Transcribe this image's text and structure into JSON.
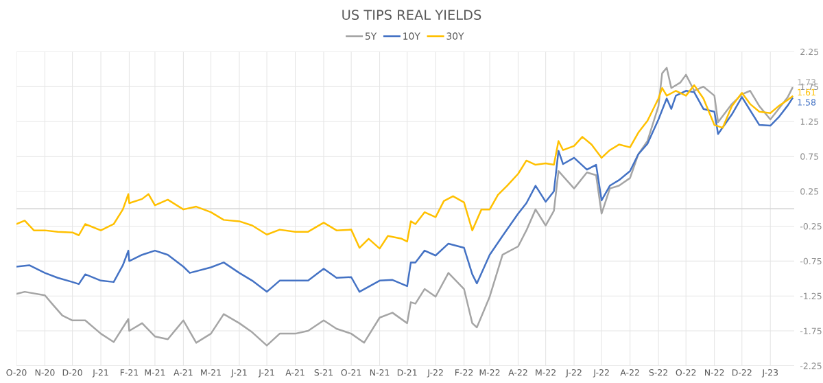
{
  "chart_data": {
    "type": "line",
    "title": "US TIPS REAL YIELDS",
    "xlim": [
      "2020-10-01",
      "2023-01-27"
    ],
    "xticks": [
      {
        "value": "2020-10-01",
        "label": "O-20"
      },
      {
        "value": "2020-11-01",
        "label": "N-20"
      },
      {
        "value": "2020-12-01",
        "label": "D-20"
      },
      {
        "value": "2021-01-01",
        "label": "J-21"
      },
      {
        "value": "2021-02-01",
        "label": "F-21"
      },
      {
        "value": "2021-03-01",
        "label": "M-21"
      },
      {
        "value": "2021-04-01",
        "label": "A-21"
      },
      {
        "value": "2021-05-01",
        "label": "M-21"
      },
      {
        "value": "2021-06-01",
        "label": "J-21"
      },
      {
        "value": "2021-07-01",
        "label": "J-21"
      },
      {
        "value": "2021-08-01",
        "label": "A-21"
      },
      {
        "value": "2021-09-01",
        "label": "S-21"
      },
      {
        "value": "2021-10-01",
        "label": "O-21"
      },
      {
        "value": "2021-11-01",
        "label": "N-21"
      },
      {
        "value": "2021-12-01",
        "label": "D-21"
      },
      {
        "value": "2022-01-01",
        "label": "J-22"
      },
      {
        "value": "2022-02-01",
        "label": "F-22"
      },
      {
        "value": "2022-03-01",
        "label": "M-22"
      },
      {
        "value": "2022-04-01",
        "label": "A-22"
      },
      {
        "value": "2022-05-01",
        "label": "M-22"
      },
      {
        "value": "2022-06-01",
        "label": "J-22"
      },
      {
        "value": "2022-07-01",
        "label": "J-22"
      },
      {
        "value": "2022-08-01",
        "label": "A-22"
      },
      {
        "value": "2022-09-01",
        "label": "S-22"
      },
      {
        "value": "2022-10-01",
        "label": "O-22"
      },
      {
        "value": "2022-11-01",
        "label": "N-22"
      },
      {
        "value": "2022-12-01",
        "label": "D-22"
      },
      {
        "value": "2023-01-01",
        "label": "J-23"
      }
    ],
    "ylim": [
      -2.25,
      2.25
    ],
    "yticks": [
      -2.25,
      -1.75,
      -1.25,
      -0.75,
      -0.25,
      0.25,
      0.75,
      1.25,
      1.75,
      2.25
    ],
    "grid": true,
    "legend": "top",
    "marker": "none",
    "line_style": "solid",
    "ref_lines": [
      {
        "axis": "y",
        "value": 0,
        "color": "#d9d9d9"
      }
    ],
    "series": [
      {
        "name": "5Y",
        "color": "#a5a5a5",
        "x": [
          "2020-10-01",
          "2020-10-10",
          "2020-11-01",
          "2020-11-10",
          "2020-11-20",
          "2020-12-01",
          "2020-12-15",
          "2021-01-01",
          "2021-01-15",
          "2021-01-31",
          "2021-02-01",
          "2021-02-15",
          "2021-03-01",
          "2021-03-15",
          "2021-04-01",
          "2021-04-15",
          "2021-05-01",
          "2021-05-15",
          "2021-06-01",
          "2021-06-15",
          "2021-07-01",
          "2021-07-15",
          "2021-08-01",
          "2021-08-15",
          "2021-09-01",
          "2021-09-15",
          "2021-10-01",
          "2021-10-15",
          "2021-11-01",
          "2021-11-15",
          "2021-12-01",
          "2021-12-05",
          "2021-12-10",
          "2021-12-20",
          "2022-01-01",
          "2022-01-15",
          "2022-02-01",
          "2022-02-10",
          "2022-02-15",
          "2022-03-01",
          "2022-03-15",
          "2022-04-01",
          "2022-04-10",
          "2022-04-20",
          "2022-05-01",
          "2022-05-10",
          "2022-05-15",
          "2022-06-01",
          "2022-06-15",
          "2022-06-25",
          "2022-07-01",
          "2022-07-10",
          "2022-07-20",
          "2022-08-01",
          "2022-08-10",
          "2022-08-20",
          "2022-09-01",
          "2022-09-05",
          "2022-09-10",
          "2022-09-15",
          "2022-09-25",
          "2022-10-01",
          "2022-10-10",
          "2022-10-20",
          "2022-11-01",
          "2022-11-05",
          "2022-11-20",
          "2022-12-01",
          "2022-12-10",
          "2022-12-20",
          "2023-01-01",
          "2023-01-10",
          "2023-01-20",
          "2023-01-25"
        ],
        "values": [
          -1.22,
          -1.19,
          -1.24,
          -1.38,
          -1.53,
          -1.6,
          -1.6,
          -1.79,
          -1.91,
          -1.58,
          -1.75,
          -1.64,
          -1.83,
          -1.87,
          -1.6,
          -1.92,
          -1.79,
          -1.51,
          -1.64,
          -1.77,
          -1.96,
          -1.79,
          -1.79,
          -1.75,
          -1.6,
          -1.72,
          -1.79,
          -1.92,
          -1.56,
          -1.49,
          -1.64,
          -1.34,
          -1.36,
          -1.15,
          -1.26,
          -0.92,
          -1.15,
          -1.64,
          -1.7,
          -1.26,
          -0.66,
          -0.54,
          -0.31,
          -0.01,
          -0.24,
          -0.03,
          0.54,
          0.29,
          0.52,
          0.48,
          -0.07,
          0.29,
          0.33,
          0.44,
          0.78,
          0.97,
          1.47,
          1.94,
          2.02,
          1.73,
          1.81,
          1.92,
          1.69,
          1.75,
          1.62,
          1.24,
          1.5,
          1.64,
          1.69,
          1.47,
          1.28,
          1.43,
          1.6,
          1.73
        ],
        "value_labels": [
          null,
          null,
          null,
          null,
          null,
          null,
          null,
          null,
          null,
          null,
          null,
          null,
          null,
          null,
          null,
          null,
          null,
          null,
          null,
          null,
          null,
          null,
          null,
          null,
          null,
          null,
          null,
          null,
          null,
          null,
          null,
          null,
          null,
          null,
          null,
          null,
          null,
          null,
          null,
          null,
          null,
          null,
          null,
          null,
          null,
          null,
          null,
          null,
          null,
          null,
          null,
          null,
          null,
          null,
          null,
          null,
          null,
          null,
          null,
          null,
          null,
          null,
          null,
          null,
          null,
          null,
          null,
          null,
          null,
          null,
          null,
          null,
          null,
          "1.73"
        ]
      },
      {
        "name": "10Y",
        "color": "#4472c4",
        "x": [
          "2020-10-01",
          "2020-10-15",
          "2020-11-01",
          "2020-11-15",
          "2020-12-01",
          "2020-12-08",
          "2020-12-15",
          "2021-01-01",
          "2021-01-15",
          "2021-01-25",
          "2021-01-31",
          "2021-02-01",
          "2021-02-15",
          "2021-03-01",
          "2021-03-15",
          "2021-04-01",
          "2021-04-08",
          "2021-05-01",
          "2021-05-15",
          "2021-06-01",
          "2021-06-15",
          "2021-07-01",
          "2021-07-15",
          "2021-08-01",
          "2021-08-15",
          "2021-09-01",
          "2021-09-15",
          "2021-10-01",
          "2021-10-10",
          "2021-11-01",
          "2021-11-15",
          "2021-12-01",
          "2021-12-05",
          "2021-12-10",
          "2021-12-20",
          "2022-01-01",
          "2022-01-15",
          "2022-02-01",
          "2022-02-10",
          "2022-02-15",
          "2022-03-01",
          "2022-03-15",
          "2022-04-01",
          "2022-04-10",
          "2022-04-20",
          "2022-05-01",
          "2022-05-10",
          "2022-05-15",
          "2022-05-20",
          "2022-06-01",
          "2022-06-15",
          "2022-06-25",
          "2022-07-01",
          "2022-07-10",
          "2022-07-20",
          "2022-08-01",
          "2022-08-10",
          "2022-08-20",
          "2022-09-01",
          "2022-09-10",
          "2022-09-15",
          "2022-09-20",
          "2022-10-01",
          "2022-10-10",
          "2022-10-20",
          "2022-11-01",
          "2022-11-05",
          "2022-11-20",
          "2022-12-01",
          "2022-12-10",
          "2022-12-20",
          "2023-01-01",
          "2023-01-10",
          "2023-01-20",
          "2023-01-25"
        ],
        "values": [
          -0.83,
          -0.81,
          -0.92,
          -0.99,
          -1.05,
          -1.08,
          -0.94,
          -1.03,
          -1.05,
          -0.81,
          -0.6,
          -0.75,
          -0.66,
          -0.6,
          -0.66,
          -0.83,
          -0.92,
          -0.84,
          -0.77,
          -0.92,
          -1.03,
          -1.19,
          -1.03,
          -1.03,
          -1.03,
          -0.86,
          -0.99,
          -0.98,
          -1.19,
          -1.03,
          -1.02,
          -1.11,
          -0.77,
          -0.77,
          -0.6,
          -0.67,
          -0.5,
          -0.56,
          -0.94,
          -1.07,
          -0.66,
          -0.39,
          -0.07,
          0.08,
          0.33,
          0.1,
          0.25,
          0.83,
          0.64,
          0.73,
          0.56,
          0.63,
          0.12,
          0.33,
          0.41,
          0.54,
          0.78,
          0.93,
          1.28,
          1.58,
          1.43,
          1.62,
          1.69,
          1.67,
          1.43,
          1.39,
          1.07,
          1.35,
          1.6,
          1.41,
          1.2,
          1.19,
          1.31,
          1.48,
          1.58
        ],
        "value_labels": [
          null,
          null,
          null,
          null,
          null,
          null,
          null,
          null,
          null,
          null,
          null,
          null,
          null,
          null,
          null,
          null,
          null,
          null,
          null,
          null,
          null,
          null,
          null,
          null,
          null,
          null,
          null,
          null,
          null,
          null,
          null,
          null,
          null,
          null,
          null,
          null,
          null,
          null,
          null,
          null,
          null,
          null,
          null,
          null,
          null,
          null,
          null,
          null,
          null,
          null,
          null,
          null,
          null,
          null,
          null,
          null,
          null,
          null,
          null,
          null,
          null,
          null,
          null,
          null,
          null,
          null,
          null,
          null,
          null,
          null,
          null,
          null,
          null,
          null,
          "1.58"
        ]
      },
      {
        "name": "30Y",
        "color": "#ffc000",
        "x": [
          "2020-10-01",
          "2020-10-10",
          "2020-10-20",
          "2020-11-01",
          "2020-11-15",
          "2020-12-01",
          "2020-12-08",
          "2020-12-15",
          "2021-01-01",
          "2021-01-15",
          "2021-01-25",
          "2021-01-31",
          "2021-02-01",
          "2021-02-15",
          "2021-02-22",
          "2021-03-01",
          "2021-03-15",
          "2021-04-01",
          "2021-04-15",
          "2021-05-01",
          "2021-05-15",
          "2021-06-01",
          "2021-06-15",
          "2021-07-01",
          "2021-07-15",
          "2021-08-01",
          "2021-08-15",
          "2021-09-01",
          "2021-09-15",
          "2021-10-01",
          "2021-10-10",
          "2021-10-20",
          "2021-11-01",
          "2021-11-10",
          "2021-11-25",
          "2021-12-01",
          "2021-12-05",
          "2021-12-10",
          "2021-12-20",
          "2022-01-01",
          "2022-01-10",
          "2022-01-20",
          "2022-02-01",
          "2022-02-10",
          "2022-02-20",
          "2022-03-01",
          "2022-03-10",
          "2022-03-20",
          "2022-04-01",
          "2022-04-10",
          "2022-04-20",
          "2022-05-01",
          "2022-05-10",
          "2022-05-15",
          "2022-05-20",
          "2022-06-01",
          "2022-06-10",
          "2022-06-20",
          "2022-07-01",
          "2022-07-10",
          "2022-07-20",
          "2022-08-01",
          "2022-08-10",
          "2022-08-20",
          "2022-09-01",
          "2022-09-05",
          "2022-09-10",
          "2022-09-20",
          "2022-10-01",
          "2022-10-10",
          "2022-10-20",
          "2022-11-01",
          "2022-11-10",
          "2022-11-20",
          "2022-12-01",
          "2022-12-10",
          "2022-12-20",
          "2023-01-01",
          "2023-01-10",
          "2023-01-20",
          "2023-01-25"
        ],
        "values": [
          -0.22,
          -0.17,
          -0.31,
          -0.31,
          -0.33,
          -0.34,
          -0.38,
          -0.22,
          -0.31,
          -0.22,
          -0.01,
          0.21,
          0.08,
          0.14,
          0.21,
          0.05,
          0.13,
          -0.01,
          0.03,
          -0.05,
          -0.16,
          -0.18,
          -0.24,
          -0.37,
          -0.3,
          -0.33,
          -0.33,
          -0.2,
          -0.31,
          -0.3,
          -0.56,
          -0.43,
          -0.57,
          -0.39,
          -0.43,
          -0.47,
          -0.18,
          -0.22,
          -0.05,
          -0.12,
          0.11,
          0.18,
          0.09,
          -0.31,
          -0.01,
          -0.01,
          0.2,
          0.33,
          0.5,
          0.69,
          0.63,
          0.65,
          0.63,
          0.97,
          0.84,
          0.9,
          1.03,
          0.92,
          0.73,
          0.84,
          0.92,
          0.88,
          1.09,
          1.26,
          1.58,
          1.73,
          1.62,
          1.69,
          1.62,
          1.77,
          1.58,
          1.2,
          1.16,
          1.47,
          1.66,
          1.5,
          1.39,
          1.37,
          1.47,
          1.56,
          1.61
        ],
        "value_labels": [
          null,
          null,
          null,
          null,
          null,
          null,
          null,
          null,
          null,
          null,
          null,
          null,
          null,
          null,
          null,
          null,
          null,
          null,
          null,
          null,
          null,
          null,
          null,
          null,
          null,
          null,
          null,
          null,
          null,
          null,
          null,
          null,
          null,
          null,
          null,
          null,
          null,
          null,
          null,
          null,
          null,
          null,
          null,
          null,
          null,
          null,
          null,
          null,
          null,
          null,
          null,
          null,
          null,
          null,
          null,
          null,
          null,
          null,
          null,
          null,
          null,
          null,
          null,
          null,
          null,
          null,
          null,
          null,
          null,
          null,
          null,
          null,
          null,
          null,
          null,
          null,
          null,
          null,
          null,
          null,
          "1.61"
        ]
      }
    ]
  }
}
